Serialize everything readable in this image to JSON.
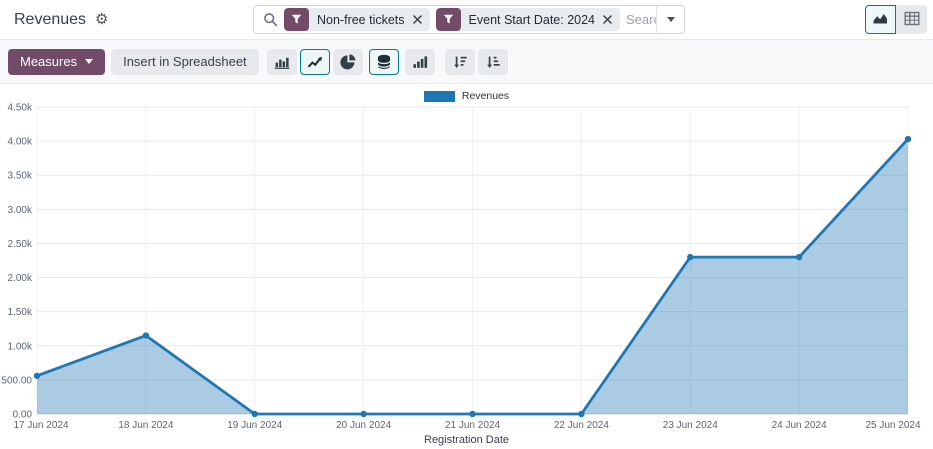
{
  "topbar": {
    "title": "Revenues",
    "search": {
      "placeholder": "Search...",
      "facets": [
        {
          "icon": "filter-funnel",
          "label": "Non-free tickets"
        },
        {
          "icon": "filter-funnel",
          "label": "Event Start Date: 2024"
        }
      ]
    },
    "view_switcher": [
      {
        "name": "graph",
        "icon": "area-chart",
        "active": true
      },
      {
        "name": "pivot",
        "icon": "pivot-table",
        "active": false
      }
    ]
  },
  "toolbar": {
    "measures_label": "Measures",
    "insert_spreadsheet_label": "Insert in Spreadsheet",
    "chart_types": [
      "bar",
      "line",
      "pie"
    ],
    "active_chart_type": "line",
    "stacked_active": true
  },
  "chart_data": {
    "type": "area",
    "title": "Revenues",
    "x": [
      "17 Jun 2024",
      "18 Jun 2024",
      "19 Jun 2024",
      "20 Jun 2024",
      "21 Jun 2024",
      "22 Jun 2024",
      "23 Jun 2024",
      "24 Jun 2024",
      "25 Jun 2024"
    ],
    "series": [
      {
        "name": "Revenues",
        "values": [
          560,
          1150,
          0,
          0,
          0,
          0,
          2300,
          2300,
          4030
        ]
      }
    ],
    "xlabel": "Registration Date",
    "ylabel": "",
    "ylim": [
      0,
      4500
    ],
    "ytick_step": 500,
    "grid": true,
    "legend_position": "top-center",
    "colors": {
      "line": "#1f77b4",
      "fill": "rgba(31,119,180,0.38)"
    }
  },
  "colors": {
    "accent_purple": "#714B67",
    "accent_teal": "#017e84",
    "line_blue": "#1f77b4"
  }
}
